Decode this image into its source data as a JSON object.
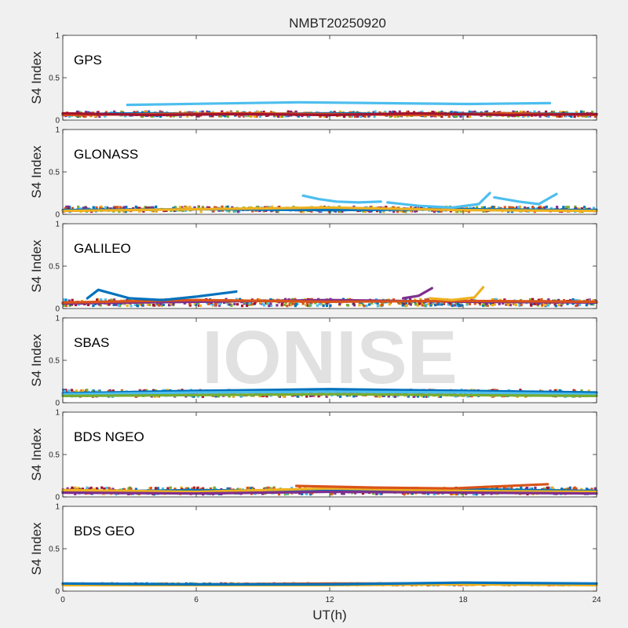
{
  "figure": {
    "title": "NMBT20250920",
    "xlabel": "UT(h)",
    "watermark": "IONISE"
  },
  "colors": {
    "figure_background": "#f0f0f0",
    "axes_background": "#ffffff",
    "axes_frame": "#262626",
    "watermark": "#d8d8d8",
    "series": [
      "#0072BD",
      "#D95319",
      "#EDB120",
      "#7E2F8E",
      "#77AC30",
      "#4DBEEE",
      "#A2142F"
    ]
  },
  "chart_data": [
    {
      "type": "line",
      "panel_label": "GPS",
      "ylabel": "S4 Index",
      "xlim": [
        0,
        24
      ],
      "ylim": [
        0,
        1
      ],
      "yticks": [
        0,
        0.5,
        1
      ],
      "ytick_labels": [
        "0",
        "0.5",
        "1"
      ],
      "baseline_s4": 0.07,
      "spread_s4": 0.03,
      "series": [
        {
          "color": "#0072BD",
          "x": [
            0,
            4,
            8,
            12,
            16,
            20,
            24
          ],
          "y": [
            0.07,
            0.08,
            0.07,
            0.08,
            0.07,
            0.08,
            0.07
          ]
        },
        {
          "color": "#D95319",
          "x": [
            0,
            4,
            8,
            12,
            16,
            20,
            24
          ],
          "y": [
            0.06,
            0.07,
            0.08,
            0.07,
            0.06,
            0.08,
            0.06
          ]
        },
        {
          "color": "#A2142F",
          "x": [
            0,
            4,
            8,
            12,
            16,
            20,
            24
          ],
          "y": [
            0.08,
            0.06,
            0.07,
            0.06,
            0.08,
            0.06,
            0.07
          ]
        },
        {
          "color": "#4DBEEE",
          "x": [
            2.9,
            10.6,
            18.2,
            21.9
          ],
          "y": [
            0.18,
            0.21,
            0.19,
            0.2
          ]
        }
      ]
    },
    {
      "type": "line",
      "panel_label": "GLONASS",
      "ylabel": "S4 Index",
      "xlim": [
        0,
        24
      ],
      "ylim": [
        0,
        1
      ],
      "yticks": [
        0,
        0.5,
        1
      ],
      "ytick_labels": [
        "0",
        "0.5",
        "1"
      ],
      "baseline_s4": 0.06,
      "spread_s4": 0.03,
      "series": [
        {
          "color": "#0072BD",
          "x": [
            0,
            6,
            12,
            18,
            24
          ],
          "y": [
            0.05,
            0.06,
            0.05,
            0.06,
            0.05
          ]
        },
        {
          "color": "#EDB120",
          "x": [
            0,
            6,
            12,
            18,
            24
          ],
          "y": [
            0.04,
            0.06,
            0.08,
            0.05,
            0.04
          ]
        },
        {
          "color": "#4DBEEE",
          "x": [
            10.8,
            11.5,
            12.3,
            13.3,
            14.3
          ],
          "y": [
            0.22,
            0.18,
            0.15,
            0.14,
            0.15
          ]
        },
        {
          "color": "#4DBEEE",
          "x": [
            14.6,
            16,
            17.5,
            18.7,
            19.2
          ],
          "y": [
            0.14,
            0.1,
            0.08,
            0.12,
            0.25
          ]
        },
        {
          "color": "#4DBEEE",
          "x": [
            19.4,
            20.5,
            21.4,
            22.2
          ],
          "y": [
            0.2,
            0.15,
            0.12,
            0.24
          ]
        }
      ]
    },
    {
      "type": "line",
      "panel_label": "GALILEO",
      "ylabel": "S4 Index",
      "xlim": [
        0,
        24
      ],
      "ylim": [
        0,
        1
      ],
      "yticks": [
        0,
        0.5,
        1
      ],
      "ytick_labels": [
        "0",
        "0.5",
        "1"
      ],
      "baseline_s4": 0.07,
      "spread_s4": 0.04,
      "series": [
        {
          "color": "#7E2F8E",
          "x": [
            0,
            6,
            12,
            18,
            24
          ],
          "y": [
            0.06,
            0.08,
            0.1,
            0.08,
            0.07
          ]
        },
        {
          "color": "#D95319",
          "x": [
            0,
            6,
            12,
            18,
            24
          ],
          "y": [
            0.07,
            0.1,
            0.08,
            0.09,
            0.08
          ]
        },
        {
          "color": "#0072BD",
          "x": [
            1.1,
            1.6,
            3,
            4.5,
            6,
            7.8
          ],
          "y": [
            0.12,
            0.22,
            0.12,
            0.1,
            0.14,
            0.2
          ]
        },
        {
          "color": "#EDB120",
          "x": [
            16.5,
            17.5,
            18.5,
            18.9
          ],
          "y": [
            0.12,
            0.1,
            0.13,
            0.25
          ]
        },
        {
          "color": "#7E2F8E",
          "x": [
            15.3,
            16,
            16.6
          ],
          "y": [
            0.12,
            0.15,
            0.24
          ]
        }
      ]
    },
    {
      "type": "line",
      "panel_label": "SBAS",
      "ylabel": "S4 Index",
      "xlim": [
        0,
        24
      ],
      "ylim": [
        0,
        1
      ],
      "yticks": [
        0,
        0.5,
        1
      ],
      "ytick_labels": [
        "0",
        "0.5",
        "1"
      ],
      "baseline_s4": 0.11,
      "spread_s4": 0.04,
      "series": [
        {
          "color": "#0072BD",
          "x": [
            0,
            6,
            12,
            18,
            24
          ],
          "y": [
            0.11,
            0.14,
            0.16,
            0.14,
            0.12
          ]
        },
        {
          "color": "#4DBEEE",
          "x": [
            0,
            6,
            12,
            18,
            24
          ],
          "y": [
            0.1,
            0.12,
            0.13,
            0.12,
            0.1
          ]
        },
        {
          "color": "#77AC30",
          "x": [
            0,
            6,
            12,
            18,
            24
          ],
          "y": [
            0.08,
            0.09,
            0.1,
            0.09,
            0.08
          ]
        }
      ]
    },
    {
      "type": "line",
      "panel_label": "BDS NGEO",
      "ylabel": "S4 Index",
      "xlim": [
        0,
        24
      ],
      "ylim": [
        0,
        1
      ],
      "yticks": [
        0,
        0.5,
        1
      ],
      "ytick_labels": [
        "0",
        "0.5",
        "1"
      ],
      "baseline_s4": 0.07,
      "spread_s4": 0.04,
      "series": [
        {
          "color": "#0072BD",
          "x": [
            0,
            6,
            12,
            18,
            24
          ],
          "y": [
            0.06,
            0.08,
            0.07,
            0.09,
            0.07
          ]
        },
        {
          "color": "#EDB120",
          "x": [
            0,
            6,
            12,
            18,
            24
          ],
          "y": [
            0.08,
            0.06,
            0.1,
            0.07,
            0.06
          ]
        },
        {
          "color": "#7E2F8E",
          "x": [
            0,
            6,
            12,
            18,
            24
          ],
          "y": [
            0.05,
            0.04,
            0.06,
            0.05,
            0.04
          ]
        },
        {
          "color": "#D95319",
          "x": [
            10.5,
            14,
            17.5,
            21.8
          ],
          "y": [
            0.13,
            0.11,
            0.1,
            0.15
          ]
        }
      ]
    },
    {
      "type": "line",
      "panel_label": "BDS GEO",
      "ylabel": "S4 Index",
      "xlim": [
        0,
        24
      ],
      "ylim": [
        0,
        1
      ],
      "yticks": [
        0,
        0.5,
        1
      ],
      "ytick_labels": [
        "0",
        "0.5",
        "1"
      ],
      "baseline_s4": 0.08,
      "spread_s4": 0.01,
      "series": [
        {
          "color": "#D95319",
          "x": [
            0,
            6,
            12,
            18,
            24
          ],
          "y": [
            0.08,
            0.08,
            0.09,
            0.09,
            0.08
          ]
        },
        {
          "color": "#EDB120",
          "x": [
            0,
            6,
            12,
            18,
            24
          ],
          "y": [
            0.07,
            0.07,
            0.07,
            0.08,
            0.07
          ]
        },
        {
          "color": "#0072BD",
          "x": [
            0,
            6,
            12,
            18,
            24
          ],
          "y": [
            0.09,
            0.08,
            0.08,
            0.1,
            0.09
          ]
        }
      ]
    }
  ],
  "x_axis": {
    "ticks": [
      0,
      6,
      12,
      18,
      24
    ],
    "tick_labels": [
      "0",
      "6",
      "12",
      "18",
      "24"
    ]
  }
}
